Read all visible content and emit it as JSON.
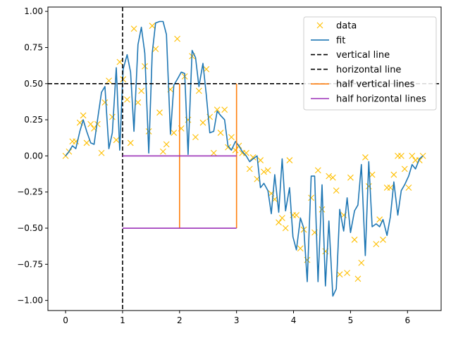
{
  "chart_data": {
    "type": "line",
    "xlim": [
      -0.31,
      6.59
    ],
    "ylim": [
      -1.07,
      1.03
    ],
    "x_ticks": [
      0,
      1,
      2,
      3,
      4,
      5,
      6
    ],
    "y_ticks": [
      1.0,
      0.75,
      0.5,
      0.25,
      0.0,
      -0.25,
      -0.5,
      -0.75,
      -1.0
    ],
    "grid": false,
    "legend_position": "top-right",
    "series": [
      {
        "name": "data",
        "kind": "scatter",
        "marker": "x",
        "color": "#ffbf00",
        "points": [
          [
            0.0,
            0.0
          ],
          [
            0.06,
            0.03
          ],
          [
            0.12,
            0.1
          ],
          [
            0.18,
            0.1
          ],
          [
            0.25,
            0.23
          ],
          [
            0.31,
            0.28
          ],
          [
            0.37,
            0.09
          ],
          [
            0.44,
            0.22
          ],
          [
            0.5,
            0.19
          ],
          [
            0.56,
            0.22
          ],
          [
            0.63,
            0.02
          ],
          [
            0.69,
            0.37
          ],
          [
            0.76,
            0.52
          ],
          [
            0.82,
            0.27
          ],
          [
            0.89,
            0.11
          ],
          [
            0.95,
            0.65
          ],
          [
            1.01,
            0.53
          ],
          [
            1.08,
            0.39
          ],
          [
            1.14,
            0.09
          ],
          [
            1.2,
            0.88
          ],
          [
            1.27,
            0.37
          ],
          [
            1.33,
            0.45
          ],
          [
            1.39,
            0.62
          ],
          [
            1.46,
            0.17
          ],
          [
            1.52,
            0.9
          ],
          [
            1.58,
            0.74
          ],
          [
            1.65,
            0.3
          ],
          [
            1.71,
            0.03
          ],
          [
            1.77,
            0.08
          ],
          [
            1.84,
            0.46
          ],
          [
            1.9,
            0.16
          ],
          [
            1.96,
            0.81
          ],
          [
            2.03,
            0.19
          ],
          [
            2.09,
            0.55
          ],
          [
            2.15,
            0.25
          ],
          [
            2.22,
            0.69
          ],
          [
            2.28,
            0.13
          ],
          [
            2.34,
            0.45
          ],
          [
            2.41,
            0.23
          ],
          [
            2.47,
            0.6
          ],
          [
            2.53,
            0.27
          ],
          [
            2.6,
            0.02
          ],
          [
            2.66,
            0.32
          ],
          [
            2.72,
            0.16
          ],
          [
            2.79,
            0.32
          ],
          [
            2.85,
            0.06
          ],
          [
            2.91,
            0.13
          ],
          [
            2.98,
            0.04
          ],
          [
            3.04,
            0.07
          ],
          [
            3.1,
            0.02
          ],
          [
            3.17,
            0.02
          ],
          [
            3.23,
            -0.09
          ],
          [
            3.29,
            -0.01
          ],
          [
            3.36,
            -0.16
          ],
          [
            3.42,
            -0.03
          ],
          [
            3.48,
            -0.11
          ],
          [
            3.55,
            -0.1
          ],
          [
            3.61,
            -0.26
          ],
          [
            3.67,
            -0.3
          ],
          [
            3.74,
            -0.46
          ],
          [
            3.8,
            -0.43
          ],
          [
            3.86,
            -0.5
          ],
          [
            3.93,
            -0.03
          ],
          [
            3.99,
            -0.41
          ],
          [
            4.05,
            -0.41
          ],
          [
            4.12,
            -0.64
          ],
          [
            4.18,
            -0.51
          ],
          [
            4.24,
            -0.72
          ],
          [
            4.31,
            -0.29
          ],
          [
            4.37,
            -0.53
          ],
          [
            4.43,
            -0.1
          ],
          [
            4.5,
            -0.37
          ],
          [
            4.56,
            -0.66
          ],
          [
            4.62,
            -0.14
          ],
          [
            4.69,
            -0.15
          ],
          [
            4.75,
            -0.24
          ],
          [
            4.81,
            -0.82
          ],
          [
            4.88,
            -0.41
          ],
          [
            4.94,
            -0.81
          ],
          [
            5.0,
            -0.15
          ],
          [
            5.07,
            -0.58
          ],
          [
            5.13,
            -0.85
          ],
          [
            5.19,
            -0.74
          ],
          [
            5.26,
            -0.01
          ],
          [
            5.32,
            -0.21
          ],
          [
            5.38,
            -0.13
          ],
          [
            5.45,
            -0.61
          ],
          [
            5.51,
            -0.44
          ],
          [
            5.57,
            -0.58
          ],
          [
            5.64,
            -0.22
          ],
          [
            5.7,
            -0.22
          ],
          [
            5.76,
            -0.13
          ],
          [
            5.83,
            0.0
          ],
          [
            5.89,
            0.0
          ],
          [
            5.95,
            -0.09
          ],
          [
            6.02,
            -0.22
          ],
          [
            6.08,
            0.0
          ],
          [
            6.14,
            -0.03
          ],
          [
            6.21,
            -0.03
          ],
          [
            6.27,
            0.0
          ]
        ]
      },
      {
        "name": "fit",
        "kind": "line",
        "color": "#1f77b4",
        "points": [
          [
            0.0,
            0.0
          ],
          [
            0.06,
            0.03
          ],
          [
            0.12,
            0.07
          ],
          [
            0.18,
            0.05
          ],
          [
            0.25,
            0.17
          ],
          [
            0.31,
            0.25
          ],
          [
            0.37,
            0.17
          ],
          [
            0.44,
            0.09
          ],
          [
            0.5,
            0.08
          ],
          [
            0.56,
            0.25
          ],
          [
            0.63,
            0.44
          ],
          [
            0.69,
            0.48
          ],
          [
            0.76,
            0.05
          ],
          [
            0.82,
            0.16
          ],
          [
            0.89,
            0.61
          ],
          [
            0.95,
            0.04
          ],
          [
            1.01,
            0.6
          ],
          [
            1.08,
            0.7
          ],
          [
            1.14,
            0.58
          ],
          [
            1.2,
            0.17
          ],
          [
            1.27,
            0.77
          ],
          [
            1.33,
            0.89
          ],
          [
            1.39,
            0.71
          ],
          [
            1.46,
            0.02
          ],
          [
            1.52,
            0.71
          ],
          [
            1.58,
            0.92
          ],
          [
            1.65,
            0.93
          ],
          [
            1.71,
            0.93
          ],
          [
            1.77,
            0.84
          ],
          [
            1.84,
            0.15
          ],
          [
            1.9,
            0.49
          ],
          [
            1.96,
            0.53
          ],
          [
            2.03,
            0.58
          ],
          [
            2.09,
            0.57
          ],
          [
            2.15,
            0.01
          ],
          [
            2.22,
            0.73
          ],
          [
            2.28,
            0.68
          ],
          [
            2.34,
            0.48
          ],
          [
            2.41,
            0.64
          ],
          [
            2.47,
            0.42
          ],
          [
            2.53,
            0.16
          ],
          [
            2.6,
            0.17
          ],
          [
            2.66,
            0.31
          ],
          [
            2.72,
            0.28
          ],
          [
            2.79,
            0.25
          ],
          [
            2.85,
            0.07
          ],
          [
            2.91,
            0.04
          ],
          [
            2.98,
            0.1
          ],
          [
            3.04,
            0.07
          ],
          [
            3.1,
            0.03
          ],
          [
            3.17,
            0.0
          ],
          [
            3.23,
            -0.04
          ],
          [
            3.29,
            -0.02
          ],
          [
            3.36,
            0.0
          ],
          [
            3.42,
            -0.22
          ],
          [
            3.48,
            -0.19
          ],
          [
            3.55,
            -0.24
          ],
          [
            3.61,
            -0.4
          ],
          [
            3.67,
            -0.13
          ],
          [
            3.74,
            -0.39
          ],
          [
            3.8,
            -0.02
          ],
          [
            3.86,
            -0.38
          ],
          [
            3.93,
            -0.22
          ],
          [
            3.99,
            -0.56
          ],
          [
            4.05,
            -0.65
          ],
          [
            4.12,
            -0.43
          ],
          [
            4.18,
            -0.5
          ],
          [
            4.24,
            -0.87
          ],
          [
            4.31,
            -0.14
          ],
          [
            4.37,
            -0.14
          ],
          [
            4.43,
            -0.87
          ],
          [
            4.5,
            -0.2
          ],
          [
            4.56,
            -0.9
          ],
          [
            4.62,
            -0.45
          ],
          [
            4.69,
            -0.97
          ],
          [
            4.75,
            -0.92
          ],
          [
            4.81,
            -0.37
          ],
          [
            4.88,
            -0.52
          ],
          [
            4.94,
            -0.29
          ],
          [
            5.0,
            -0.53
          ],
          [
            5.07,
            -0.38
          ],
          [
            5.13,
            -0.34
          ],
          [
            5.19,
            -0.06
          ],
          [
            5.26,
            -0.69
          ],
          [
            5.32,
            -0.04
          ],
          [
            5.38,
            -0.49
          ],
          [
            5.45,
            -0.47
          ],
          [
            5.51,
            -0.49
          ],
          [
            5.57,
            -0.44
          ],
          [
            5.64,
            -0.55
          ],
          [
            5.7,
            -0.42
          ],
          [
            5.76,
            -0.18
          ],
          [
            5.83,
            -0.41
          ],
          [
            5.89,
            -0.24
          ],
          [
            5.95,
            -0.2
          ],
          [
            6.02,
            -0.14
          ],
          [
            6.08,
            -0.06
          ],
          [
            6.14,
            -0.09
          ],
          [
            6.21,
            -0.02
          ],
          [
            6.27,
            0.0
          ]
        ]
      },
      {
        "name": "vertical line",
        "kind": "vline",
        "x": 1,
        "color": "#000000",
        "style": "dashed"
      },
      {
        "name": "horizontal line",
        "kind": "hline",
        "y": 0.5,
        "color": "#000000",
        "style": "dashed"
      },
      {
        "name": "half vertical lines",
        "kind": "vlines",
        "x": [
          2,
          3
        ],
        "ymin": -0.5,
        "ymax": 0.5,
        "color": "#ff7f0e"
      },
      {
        "name": "half horizontal lines",
        "kind": "hlines",
        "y": [
          0,
          -0.5
        ],
        "xmin": 1,
        "xmax": 3,
        "color": "#9b30b8"
      }
    ],
    "legend": [
      "data",
      "fit",
      "vertical line",
      "horizontal line",
      "half vertical lines",
      "half horizontal lines"
    ]
  }
}
